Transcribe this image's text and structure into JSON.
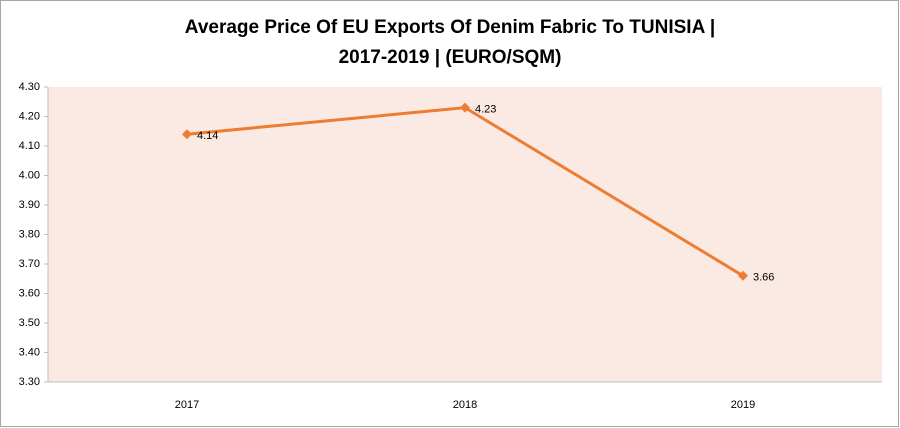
{
  "chart_data": {
    "type": "line",
    "title": [
      "Average Price Of EU Exports Of Denim Fabric To TUNISIA |",
      "2017-2019 | (EURO/SQM)"
    ],
    "categories": [
      "2017",
      "2018",
      "2019"
    ],
    "values": [
      4.14,
      4.23,
      3.66
    ],
    "color": "#ed7d31",
    "plot_background": "#fbeae4",
    "ylim": [
      3.3,
      4.3
    ],
    "yticks": [
      {
        "value": 3.3,
        "label": "3.30"
      },
      {
        "value": 3.4,
        "label": "3.40"
      },
      {
        "value": 3.5,
        "label": "3.50"
      },
      {
        "value": 3.6,
        "label": "3.60"
      },
      {
        "value": 3.7,
        "label": "3.70"
      },
      {
        "value": 3.8,
        "label": "3.80"
      },
      {
        "value": 3.9,
        "label": "3.90"
      },
      {
        "value": 4.0,
        "label": "4.00"
      },
      {
        "value": 4.1,
        "label": "4.10"
      },
      {
        "value": 4.2,
        "label": "4.20"
      },
      {
        "value": 4.3,
        "label": "4.30"
      }
    ],
    "grid": false
  }
}
